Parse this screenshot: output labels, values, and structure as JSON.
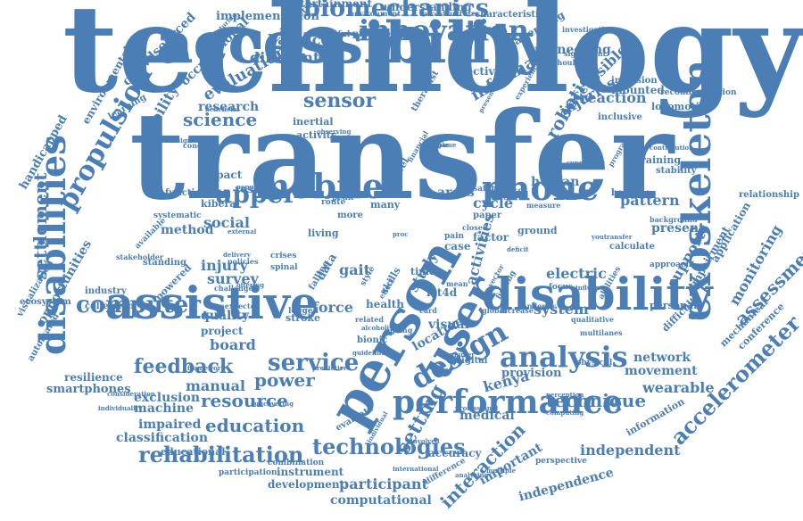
{
  "word_cloud": {
    "color": "#4a7eb5",
    "words": [
      {
        "text": "technology",
        "size": "xxl"
      },
      {
        "text": "transfer",
        "size": "xxl"
      },
      {
        "text": "accessibility",
        "size": "xl"
      },
      {
        "text": "assistive",
        "size": "xl"
      },
      {
        "text": "disability",
        "size": "xl"
      },
      {
        "text": "person",
        "size": "xl"
      },
      {
        "text": "user",
        "size": "l"
      },
      {
        "text": "mobile",
        "size": "l"
      },
      {
        "text": "phone",
        "size": "l"
      },
      {
        "text": "upper",
        "size": "l"
      },
      {
        "text": "exoskeleton",
        "size": "l"
      },
      {
        "text": "disabilities",
        "size": "l"
      },
      {
        "text": "performance",
        "size": "l"
      },
      {
        "text": "design",
        "size": "l"
      },
      {
        "text": "analysis",
        "size": "l"
      },
      {
        "text": "innovation",
        "size": "l"
      },
      {
        "text": "biomechanics",
        "size": "m"
      },
      {
        "text": "propulsion",
        "size": "m"
      },
      {
        "text": "computer",
        "size": "m"
      },
      {
        "text": "service",
        "size": "m"
      },
      {
        "text": "technologies",
        "size": "m"
      },
      {
        "text": "rehabilitation",
        "size": "m"
      },
      {
        "text": "accelerometer",
        "size": "m"
      },
      {
        "text": "setting",
        "size": "m"
      },
      {
        "text": "feedback",
        "size": "m"
      },
      {
        "text": "sensor",
        "size": "m"
      },
      {
        "text": "science",
        "size": "m"
      },
      {
        "text": "robotic",
        "size": "m"
      },
      {
        "text": "interaction",
        "size": "m"
      },
      {
        "text": "settlement",
        "size": "m"
      },
      {
        "text": "power",
        "size": "m"
      },
      {
        "text": "resource",
        "size": "m"
      },
      {
        "text": "education",
        "size": "m"
      },
      {
        "text": "technique",
        "size": "m"
      },
      {
        "text": "assessment",
        "size": "m"
      },
      {
        "text": "system",
        "size": "s"
      },
      {
        "text": "support",
        "size": "s"
      },
      {
        "text": "monitoring",
        "size": "s"
      },
      {
        "text": "force",
        "size": "s"
      },
      {
        "text": "gait",
        "size": "s"
      },
      {
        "text": "study",
        "size": "s"
      },
      {
        "text": "activities",
        "size": "s"
      },
      {
        "text": "kenya",
        "size": "s"
      },
      {
        "text": "wearable",
        "size": "s"
      },
      {
        "text": "movement",
        "size": "s"
      },
      {
        "text": "network",
        "size": "s"
      },
      {
        "text": "manual",
        "size": "s"
      },
      {
        "text": "board",
        "size": "s"
      },
      {
        "text": "injury",
        "size": "s"
      },
      {
        "text": "survey",
        "size": "s"
      },
      {
        "text": "social",
        "size": "s"
      },
      {
        "text": "method",
        "size": "s"
      },
      {
        "text": "balanced",
        "size": "s"
      },
      {
        "text": "different",
        "size": "s"
      },
      {
        "text": "evaluation",
        "size": "s"
      },
      {
        "text": "mobility",
        "size": "s"
      },
      {
        "text": "research",
        "size": "s"
      },
      {
        "text": "informal",
        "size": "s"
      },
      {
        "text": "accessible",
        "size": "s"
      },
      {
        "text": "injuries",
        "size": "s"
      },
      {
        "text": "reaction",
        "size": "s"
      },
      {
        "text": "engineering",
        "size": "s"
      },
      {
        "text": "cycle",
        "size": "s"
      },
      {
        "text": "pattern",
        "size": "s"
      },
      {
        "text": "human",
        "size": "s"
      },
      {
        "text": "electric",
        "size": "s"
      },
      {
        "text": "present",
        "size": "s"
      },
      {
        "text": "independent",
        "size": "s"
      },
      {
        "text": "participant",
        "size": "s"
      },
      {
        "text": "computational",
        "size": "s"
      },
      {
        "text": "independence",
        "size": "s"
      },
      {
        "text": "machine",
        "size": "s"
      },
      {
        "text": "classification",
        "size": "s"
      },
      {
        "text": "exclusion",
        "size": "s"
      },
      {
        "text": "impaired",
        "size": "s"
      },
      {
        "text": "smartphones",
        "size": "s"
      },
      {
        "text": "resilience",
        "size": "s"
      },
      {
        "text": "quality",
        "size": "s"
      },
      {
        "text": "project",
        "size": "s"
      },
      {
        "text": "visual",
        "size": "s"
      },
      {
        "text": "location",
        "size": "s"
      },
      {
        "text": "medical",
        "size": "s"
      },
      {
        "text": "important",
        "size": "s"
      },
      {
        "text": "accuracy",
        "size": "s"
      },
      {
        "text": "provision",
        "size": "s"
      },
      {
        "text": "opportunities",
        "size": "s"
      },
      {
        "text": "handicapped",
        "size": "s"
      },
      {
        "text": "crowdsourced",
        "size": "s"
      },
      {
        "text": "occupational",
        "size": "s"
      },
      {
        "text": "environmental",
        "size": "s"
      },
      {
        "text": "implementation",
        "size": "xs"
      },
      {
        "text": "entertainment",
        "size": "xs"
      },
      {
        "text": "understanding",
        "size": "xs"
      },
      {
        "text": "characteristic",
        "size": "xs"
      },
      {
        "text": "challenging",
        "size": "xs"
      },
      {
        "text": "effective",
        "size": "xs"
      },
      {
        "text": "inertial",
        "size": "xs"
      },
      {
        "text": "activity",
        "size": "xs"
      },
      {
        "text": "impact",
        "size": "xs"
      },
      {
        "text": "result",
        "size": "xs"
      },
      {
        "text": "function",
        "size": "xs"
      },
      {
        "text": "training",
        "size": "xs"
      },
      {
        "text": "mounted",
        "size": "xs"
      },
      {
        "text": "locomotion",
        "size": "xs"
      },
      {
        "text": "inclusive",
        "size": "xs"
      },
      {
        "text": "inclusion",
        "size": "xs"
      },
      {
        "text": "recommendation",
        "size": "xs"
      },
      {
        "text": "stability",
        "size": "xs"
      },
      {
        "text": "batterie",
        "size": "xs"
      },
      {
        "text": "relationship",
        "size": "xs"
      },
      {
        "text": "application",
        "size": "xs"
      },
      {
        "text": "impairment",
        "size": "xs"
      },
      {
        "text": "personal",
        "size": "xs"
      },
      {
        "text": "difficulty",
        "size": "xs"
      },
      {
        "text": "mechanical",
        "size": "xs"
      },
      {
        "text": "conference",
        "size": "xs"
      },
      {
        "text": "dataset",
        "size": "xs"
      },
      {
        "text": "safety",
        "size": "xs"
      },
      {
        "text": "ground",
        "size": "xs"
      },
      {
        "text": "calculate",
        "size": "xs"
      },
      {
        "text": "arces",
        "size": "xs"
      },
      {
        "text": "factor",
        "size": "xs"
      },
      {
        "text": "many",
        "size": "xs"
      },
      {
        "text": "living",
        "size": "xs"
      },
      {
        "text": "kibera",
        "size": "xs"
      },
      {
        "text": "standing",
        "size": "xs"
      },
      {
        "text": "powered",
        "size": "xs"
      },
      {
        "text": "industry",
        "size": "xs"
      },
      {
        "text": "collection",
        "size": "xs"
      },
      {
        "text": "ecosystem",
        "size": "xs"
      },
      {
        "text": "automated",
        "size": "xs"
      },
      {
        "text": "visualization",
        "size": "xs"
      },
      {
        "text": "educational",
        "size": "xs"
      },
      {
        "text": "participation",
        "size": "xs"
      },
      {
        "text": "instrument",
        "size": "xs"
      },
      {
        "text": "development",
        "size": "xs"
      },
      {
        "text": "combination",
        "size": "xs"
      },
      {
        "text": "evaluate",
        "size": "xs"
      },
      {
        "text": "perspective",
        "size": "xs"
      },
      {
        "text": "information",
        "size": "xs"
      },
      {
        "text": "digital",
        "size": "xs"
      },
      {
        "text": "ict4d",
        "size": "xs"
      },
      {
        "text": "time",
        "size": "xs"
      },
      {
        "text": "health",
        "size": "xs"
      },
      {
        "text": "stroke",
        "size": "xs"
      },
      {
        "text": "legged",
        "size": "xs"
      },
      {
        "text": "learning",
        "size": "xs"
      },
      {
        "text": "successful",
        "size": "xs"
      },
      {
        "text": "prosthesis",
        "size": "xs"
      },
      {
        "text": "environment",
        "size": "xs"
      },
      {
        "text": "infrastructure",
        "size": "xs"
      },
      {
        "text": "investigation",
        "size": "xs"
      },
      {
        "text": "significant",
        "size": "xs"
      },
      {
        "text": "shoulder",
        "size": "xs"
      },
      {
        "text": "experience",
        "size": "xs"
      },
      {
        "text": "manufacturing",
        "size": "xs"
      },
      {
        "text": "cybernetic",
        "size": "xs"
      },
      {
        "text": "observing",
        "size": "xs"
      },
      {
        "text": "beneficial",
        "size": "xs"
      },
      {
        "text": "condition",
        "size": "xs"
      },
      {
        "text": "therapist",
        "size": "xs"
      },
      {
        "text": "presence",
        "size": "xs"
      },
      {
        "text": "contribution",
        "size": "xs"
      },
      {
        "text": "youdesign",
        "size": "xs"
      },
      {
        "text": "systematic",
        "size": "xs"
      },
      {
        "text": "stakeholder",
        "size": "xs"
      },
      {
        "text": "available",
        "size": "xs"
      },
      {
        "text": "framework",
        "size": "xs"
      },
      {
        "text": "individuality",
        "size": "xs"
      },
      {
        "text": "consideration",
        "size": "xs"
      },
      {
        "text": "unexpected",
        "size": "xs"
      },
      {
        "text": "challenge",
        "size": "xs"
      },
      {
        "text": "bionic",
        "size": "xs"
      },
      {
        "text": "focus",
        "size": "xs"
      },
      {
        "text": "influence",
        "size": "xs"
      },
      {
        "text": "physical",
        "size": "xs"
      },
      {
        "text": "global",
        "size": "xs"
      },
      {
        "text": "increase",
        "size": "xs"
      },
      {
        "text": "pandemic",
        "size": "xs"
      },
      {
        "text": "qualitative",
        "size": "xs"
      },
      {
        "text": "abilities",
        "size": "xs"
      },
      {
        "text": "multilanes",
        "size": "xs"
      },
      {
        "text": "computing",
        "size": "xs"
      },
      {
        "text": "perception",
        "size": "xs"
      },
      {
        "text": "approach",
        "size": "xs"
      },
      {
        "text": "background",
        "size": "xs"
      },
      {
        "text": "youtransfer",
        "size": "xs"
      },
      {
        "text": "measure",
        "size": "xs"
      },
      {
        "text": "wheel",
        "size": "xs"
      },
      {
        "text": "school",
        "size": "xs"
      },
      {
        "text": "route",
        "size": "xs"
      },
      {
        "text": "peak",
        "size": "xs"
      },
      {
        "text": "financial",
        "size": "xs"
      },
      {
        "text": "policies",
        "size": "xs"
      },
      {
        "text": "delivery",
        "size": "xs"
      },
      {
        "text": "spinal",
        "size": "xs"
      },
      {
        "text": "crises",
        "size": "xs"
      },
      {
        "text": "falling",
        "size": "xs"
      },
      {
        "text": "pain",
        "size": "xs"
      },
      {
        "text": "case",
        "size": "xs"
      },
      {
        "text": "skills",
        "size": "xs"
      },
      {
        "text": "data",
        "size": "xs"
      },
      {
        "text": "more",
        "size": "xs"
      },
      {
        "text": "paper",
        "size": "xs"
      },
      {
        "text": "affect",
        "size": "xs"
      },
      {
        "text": "alcoholism",
        "size": "xs"
      },
      {
        "text": "international",
        "size": "xs"
      },
      {
        "text": "involved",
        "size": "xs"
      },
      {
        "text": "analyzing",
        "size": "xs"
      },
      {
        "text": "difference",
        "size": "xs"
      },
      {
        "text": "individual",
        "size": "xs"
      },
      {
        "text": "uncovering",
        "size": "xs"
      },
      {
        "text": "professional",
        "size": "xs"
      },
      {
        "text": "multiple",
        "size": "xs"
      },
      {
        "text": "summer",
        "size": "xs"
      },
      {
        "text": "predictive",
        "size": "xs"
      },
      {
        "text": "guideline",
        "size": "xs"
      },
      {
        "text": "related",
        "size": "xs"
      },
      {
        "text": "ageing",
        "size": "xs"
      },
      {
        "text": "vector",
        "size": "xs"
      },
      {
        "text": "finding",
        "size": "xs"
      },
      {
        "text": "style",
        "size": "xs"
      },
      {
        "text": "effect",
        "size": "xs"
      },
      {
        "text": "mean",
        "size": "xs"
      },
      {
        "text": "program",
        "size": "xs"
      },
      {
        "text": "supporting",
        "size": "xs"
      },
      {
        "text": "example",
        "size": "xs"
      },
      {
        "text": "game",
        "size": "xs"
      },
      {
        "text": "external",
        "size": "xs"
      },
      {
        "text": "offering",
        "size": "xs"
      },
      {
        "text": "population",
        "size": "xs"
      },
      {
        "text": "card",
        "size": "xs"
      },
      {
        "text": "proc",
        "size": "xs"
      },
      {
        "text": "deficit",
        "size": "xs"
      },
      {
        "text": "closed",
        "size": "xs"
      }
    ]
  }
}
